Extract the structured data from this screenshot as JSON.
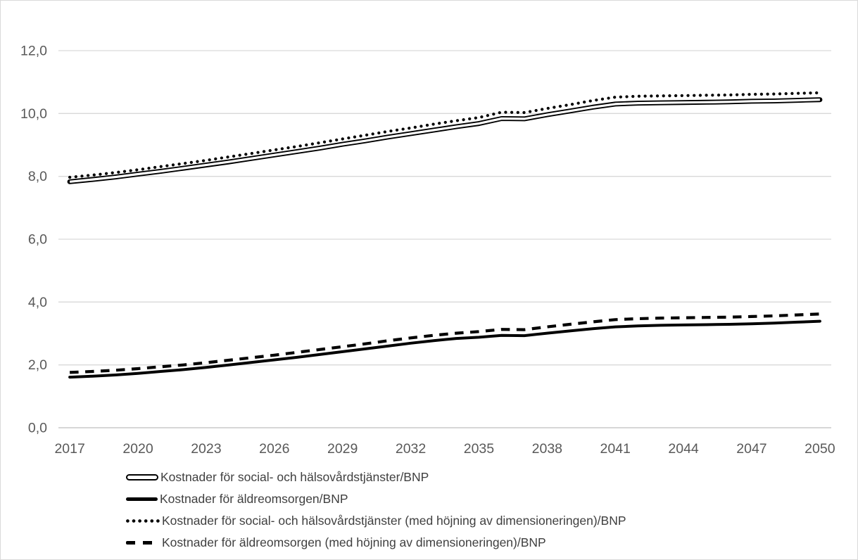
{
  "chart_data": {
    "type": "line",
    "title": "",
    "xlabel": "",
    "ylabel": "",
    "ylim": [
      0,
      12
    ],
    "y_tick_step": 2,
    "y_tick_labels": [
      "0,0",
      "2,0",
      "4,0",
      "6,0",
      "8,0",
      "10,0",
      "12,0"
    ],
    "x_tick_labels": [
      "2017",
      "2020",
      "2023",
      "2026",
      "2029",
      "2032",
      "2035",
      "2038",
      "2041",
      "2044",
      "2047",
      "2050"
    ],
    "x": [
      2017,
      2018,
      2019,
      2020,
      2021,
      2022,
      2023,
      2024,
      2025,
      2026,
      2027,
      2028,
      2029,
      2030,
      2031,
      2032,
      2033,
      2034,
      2035,
      2036,
      2037,
      2038,
      2039,
      2040,
      2041,
      2042,
      2043,
      2044,
      2045,
      2046,
      2047,
      2048,
      2049,
      2050
    ],
    "grid": "horizontal",
    "legend_position": "bottom-left",
    "decimal_separator": ",",
    "series": [
      {
        "name": "Kostnader för social- och hälsovårdstjänster/BNP",
        "style": "double-line",
        "color": "#000000",
        "values": [
          7.83,
          7.9,
          7.98,
          8.07,
          8.16,
          8.26,
          8.36,
          8.46,
          8.57,
          8.68,
          8.79,
          8.9,
          9.02,
          9.13,
          9.25,
          9.36,
          9.47,
          9.58,
          9.68,
          9.84,
          9.83,
          9.96,
          10.08,
          10.2,
          10.3,
          10.33,
          10.34,
          10.35,
          10.36,
          10.37,
          10.39,
          10.4,
          10.42,
          10.44
        ]
      },
      {
        "name": "Kostnader för äldreomsorgen/BNP",
        "style": "solid",
        "color": "#000000",
        "values": [
          1.61,
          1.64,
          1.68,
          1.73,
          1.79,
          1.85,
          1.92,
          2.0,
          2.08,
          2.16,
          2.24,
          2.33,
          2.42,
          2.51,
          2.6,
          2.69,
          2.77,
          2.84,
          2.88,
          2.94,
          2.93,
          3.01,
          3.08,
          3.15,
          3.21,
          3.24,
          3.26,
          3.27,
          3.28,
          3.29,
          3.31,
          3.33,
          3.36,
          3.39
        ]
      },
      {
        "name": "Kostnader för social- och hälsovårdstjänster (med höjning av dimensioneringen)/BNP",
        "style": "dotted",
        "color": "#000000",
        "values": [
          7.97,
          8.04,
          8.12,
          8.21,
          8.31,
          8.41,
          8.51,
          8.62,
          8.73,
          8.84,
          8.95,
          9.07,
          9.19,
          9.31,
          9.43,
          9.54,
          9.66,
          9.77,
          9.87,
          10.04,
          10.03,
          10.16,
          10.28,
          10.41,
          10.52,
          10.55,
          10.56,
          10.57,
          10.58,
          10.59,
          10.61,
          10.62,
          10.64,
          10.66
        ]
      },
      {
        "name": "Kostnader för äldreomsorgen (med höjning av dimensioneringen)/BNP",
        "style": "dashed",
        "color": "#000000",
        "values": [
          1.76,
          1.79,
          1.83,
          1.88,
          1.94,
          2.0,
          2.07,
          2.15,
          2.23,
          2.31,
          2.4,
          2.49,
          2.58,
          2.67,
          2.77,
          2.86,
          2.94,
          3.01,
          3.06,
          3.13,
          3.12,
          3.21,
          3.29,
          3.37,
          3.44,
          3.47,
          3.49,
          3.5,
          3.51,
          3.52,
          3.54,
          3.56,
          3.59,
          3.62
        ]
      }
    ]
  },
  "colors": {
    "background": "#FFFFFF",
    "border": "#D9D9D9",
    "gridline": "#D9D9D9",
    "axis_line": "#BFBFBF",
    "axis_label": "#595959",
    "legend_text": "#404040",
    "series_color": "#000000"
  }
}
